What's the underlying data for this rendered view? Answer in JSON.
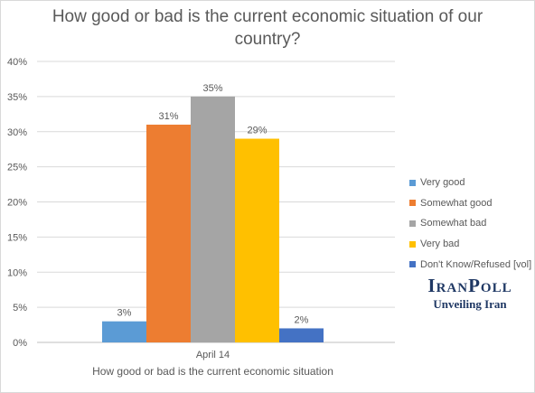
{
  "chart_data": {
    "type": "bar",
    "title": "How good or bad is the current economic situation of our country?",
    "title_lines": [
      "How good or bad is the current economic situation of our",
      "country?"
    ],
    "categories": [
      "April 14"
    ],
    "category_title": "How good or bad is the current economic situation",
    "series": [
      {
        "name": "Very good",
        "values": [
          3
        ],
        "label": "3%",
        "color": "#5b9bd5"
      },
      {
        "name": "Somewhat good",
        "values": [
          31
        ],
        "label": "31%",
        "color": "#ed7d31"
      },
      {
        "name": "Somewhat bad",
        "values": [
          35
        ],
        "label": "35%",
        "color": "#a5a5a5"
      },
      {
        "name": "Very bad",
        "values": [
          29
        ],
        "label": "29%",
        "color": "#ffc000"
      },
      {
        "name": "Don't Know/Refused [vol]",
        "values": [
          2
        ],
        "label": "2%",
        "color": "#4472c4"
      }
    ],
    "y_ticks": [
      "0%",
      "5%",
      "10%",
      "15%",
      "20%",
      "25%",
      "30%",
      "35%",
      "40%"
    ],
    "ylim": [
      0,
      40
    ],
    "grid": true,
    "legend_position": "right"
  },
  "logo": {
    "name": "IranPoll",
    "tagline": "Unveiling Iran"
  }
}
